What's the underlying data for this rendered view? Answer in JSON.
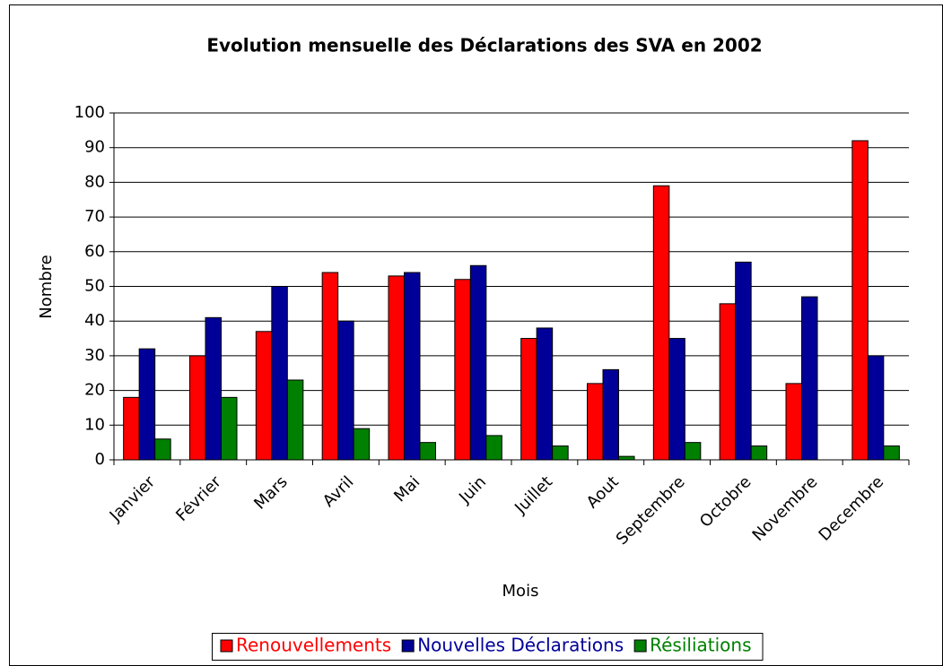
{
  "chart_data": {
    "type": "bar",
    "title": "Evolution mensuelle des Déclarations des SVA en 2002",
    "x_label": "Mois",
    "y_label": "Nombre",
    "categories": [
      "Janvier",
      "Février",
      "Mars",
      "Avril",
      "Mai",
      "Juin",
      "Juillet",
      "Aout",
      "Septembre",
      "Octobre",
      "Novembre",
      "Decembre"
    ],
    "series": [
      {
        "name": "Renouvellements",
        "color": "#ff0000",
        "values": [
          18,
          30,
          37,
          54,
          53,
          52,
          35,
          22,
          79,
          45,
          22,
          92
        ]
      },
      {
        "name": "Nouvelles Déclarations",
        "color": "#000099",
        "values": [
          32,
          41,
          50,
          40,
          54,
          56,
          38,
          26,
          35,
          57,
          47,
          30
        ]
      },
      {
        "name": "Résiliations",
        "color": "#008000",
        "values": [
          6,
          18,
          23,
          9,
          5,
          7,
          4,
          1,
          5,
          4,
          0,
          4
        ]
      }
    ],
    "ylim": [
      0,
      100
    ],
    "yticks": [
      0,
      10,
      20,
      30,
      40,
      50,
      60,
      70,
      80,
      90,
      100
    ],
    "grid": true,
    "legend": "bottom"
  }
}
